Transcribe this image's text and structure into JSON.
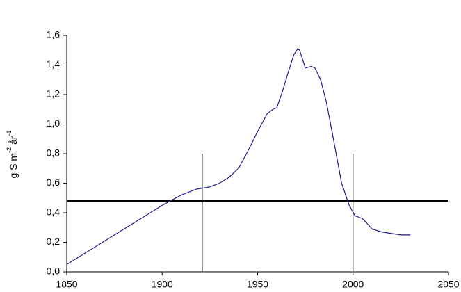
{
  "chart_data": {
    "type": "line",
    "ylabel": [
      "g S m",
      "-2",
      " år",
      "-1"
    ],
    "x": [
      1850,
      1860,
      1870,
      1880,
      1890,
      1900,
      1910,
      1918,
      1925,
      1930,
      1935,
      1940,
      1945,
      1950,
      1955,
      1958,
      1960,
      1963,
      1966,
      1969,
      1971,
      1972,
      1975,
      1978,
      1980,
      1983,
      1986,
      1990,
      1994,
      1998,
      2001,
      2005,
      2010,
      2015,
      2020,
      2025,
      2030
    ],
    "series": [
      {
        "color": "#1c1c8a",
        "values": [
          0.05,
          0.13,
          0.21,
          0.29,
          0.37,
          0.45,
          0.52,
          0.56,
          0.575,
          0.6,
          0.64,
          0.7,
          0.82,
          0.95,
          1.07,
          1.1,
          1.11,
          1.22,
          1.35,
          1.47,
          1.51,
          1.5,
          1.38,
          1.39,
          1.38,
          1.3,
          1.15,
          0.88,
          0.6,
          0.45,
          0.38,
          0.36,
          0.29,
          0.27,
          0.26,
          0.25,
          0.25
        ]
      }
    ],
    "hline": 0.48,
    "vlines": [
      {
        "x": 1921,
        "ymax": 0.8
      },
      {
        "x": 2000,
        "ymax": 0.8
      }
    ],
    "xlim": [
      1850,
      2050
    ],
    "xticks": [
      1850,
      1900,
      1950,
      2000,
      2050
    ],
    "ylim": [
      0,
      1.6
    ],
    "yticks": [
      {
        "value": 0,
        "label": "0,0"
      },
      {
        "value": 0.2,
        "label": "0,2"
      },
      {
        "value": 0.4,
        "label": "0,4"
      },
      {
        "value": 0.6,
        "label": "0,6"
      },
      {
        "value": 0.8,
        "label": "0,8"
      },
      {
        "value": 1,
        "label": "1,0"
      },
      {
        "value": 1.2,
        "label": "1,2"
      },
      {
        "value": 1.4,
        "label": "1,4"
      },
      {
        "value": 1.6,
        "label": "1,6"
      }
    ]
  }
}
